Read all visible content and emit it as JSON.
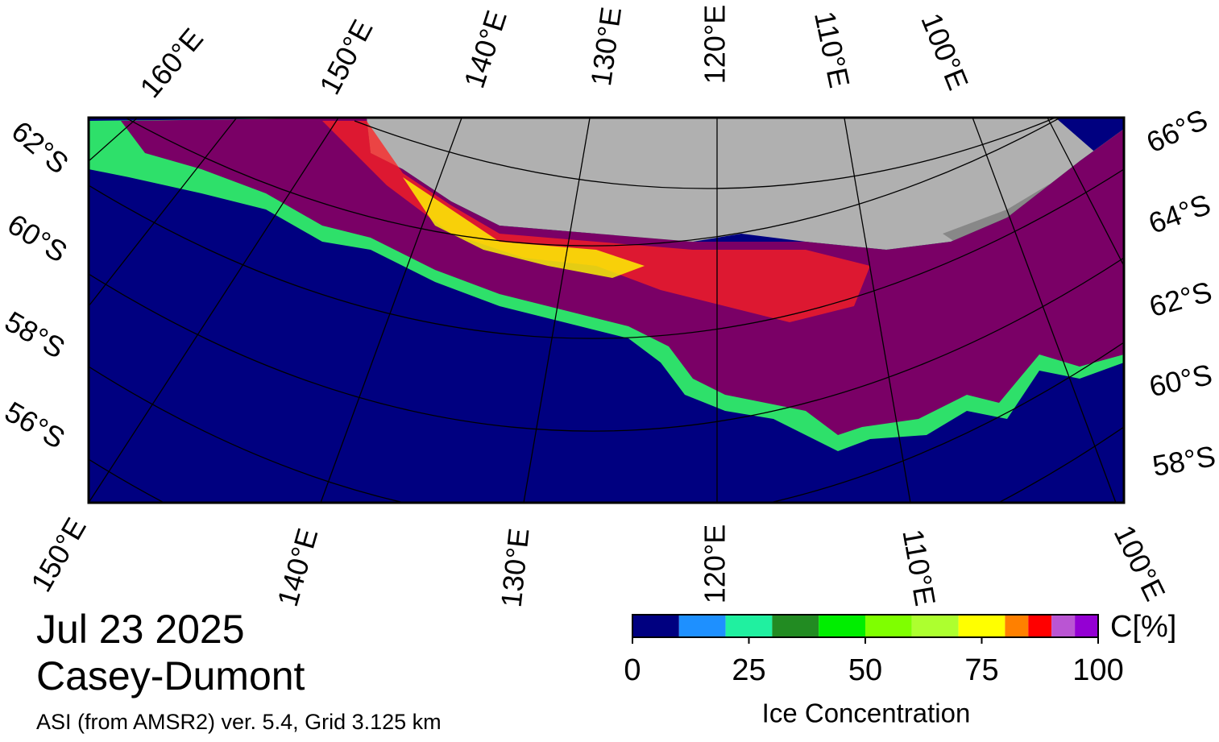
{
  "map": {
    "top_lon_labels": [
      "160°E",
      "150°E",
      "140°E",
      "130°E",
      "120°E",
      "110°E",
      "100°E"
    ],
    "bottom_lon_labels": [
      "150°E",
      "140°E",
      "130°E",
      "120°E",
      "110°E",
      "100°E"
    ],
    "left_lat_labels": [
      "62°S",
      "60°S",
      "58°S",
      "56°S"
    ],
    "right_lat_labels": [
      "66°S",
      "64°S",
      "62°S",
      "60°S",
      "58°S"
    ]
  },
  "info": {
    "date": "Jul 23 2025",
    "region": "Casey-Dumont",
    "source": "ASI (from AMSR2) ver. 5.4,  Grid 3.125 km"
  },
  "colorbar": {
    "title": "Ice Concentration",
    "unit": "C[%]",
    "lim": [
      0,
      100
    ],
    "bins": [
      0,
      10,
      20,
      30,
      40,
      50,
      60,
      70,
      80,
      85,
      90,
      95,
      100
    ],
    "colors": [
      "#000080",
      "#1e90ff",
      "#20f0a0",
      "#228b22",
      "#00ee00",
      "#7fff00",
      "#adff2f",
      "#ffff00",
      "#ff8000",
      "#ff0000",
      "#ba55d3",
      "#9400d3"
    ],
    "ticks": [
      0,
      25,
      50,
      75,
      100
    ]
  }
}
